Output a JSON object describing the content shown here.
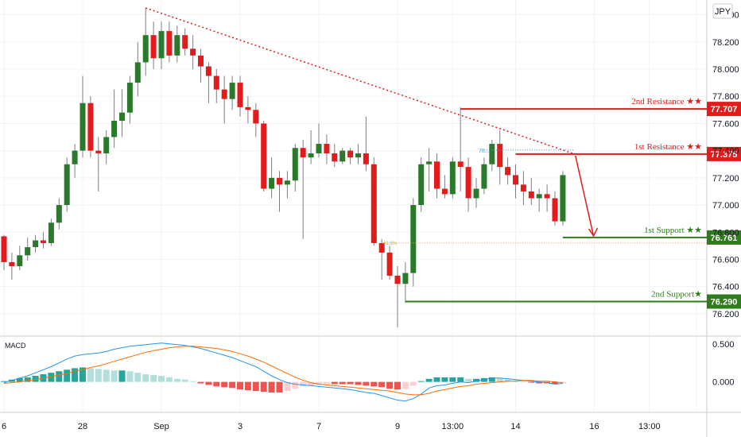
{
  "chart_data": {
    "type": "candlestick",
    "currency": "JPY",
    "ylim": [
      76.1,
      78.45
    ],
    "y_ticks": [
      "78.400",
      "78.200",
      "78.000",
      "77.800",
      "77.600",
      "77.400",
      "77.200",
      "77.000",
      "76.800",
      "76.600",
      "76.400",
      "76.200"
    ],
    "x_tick_labels": [
      {
        "label": "6",
        "i": 0
      },
      {
        "label": "28",
        "i": 10
      },
      {
        "label": "Sep",
        "i": 20
      },
      {
        "label": "3",
        "i": 30
      },
      {
        "label": "7",
        "i": 40
      },
      {
        "label": "9",
        "i": 50
      },
      {
        "label": "13:00",
        "i": 57
      },
      {
        "label": "14",
        "i": 65
      },
      {
        "label": "16",
        "i": 75
      },
      {
        "label": "13:00",
        "i": 82
      },
      {
        "label": "",
        "i": 88
      }
    ],
    "candles": [
      [
        76.77,
        76.78,
        76.52,
        76.58
      ],
      [
        76.58,
        76.65,
        76.45,
        76.55
      ],
      [
        76.55,
        76.7,
        76.52,
        76.63
      ],
      [
        76.63,
        76.76,
        76.59,
        76.69
      ],
      [
        76.69,
        76.78,
        76.65,
        76.74
      ],
      [
        76.74,
        76.8,
        76.68,
        76.72
      ],
      [
        76.72,
        76.9,
        76.7,
        76.87
      ],
      [
        76.87,
        77.05,
        76.82,
        77.0
      ],
      [
        77.0,
        77.35,
        76.95,
        77.3
      ],
      [
        77.3,
        77.45,
        77.2,
        77.4
      ],
      [
        77.4,
        77.95,
        77.35,
        77.75
      ],
      [
        77.75,
        77.8,
        77.35,
        77.4
      ],
      [
        77.4,
        77.5,
        77.1,
        77.38
      ],
      [
        77.38,
        77.55,
        77.3,
        77.5
      ],
      [
        77.5,
        77.85,
        77.42,
        77.62
      ],
      [
        77.62,
        77.85,
        77.5,
        77.68
      ],
      [
        77.68,
        77.95,
        77.6,
        77.9
      ],
      [
        77.9,
        78.2,
        77.8,
        78.05
      ],
      [
        78.05,
        78.45,
        77.95,
        78.25
      ],
      [
        78.25,
        78.35,
        78.0,
        78.08
      ],
      [
        78.08,
        78.35,
        78.0,
        78.28
      ],
      [
        78.28,
        78.35,
        78.05,
        78.1
      ],
      [
        78.1,
        78.32,
        78.05,
        78.25
      ],
      [
        78.25,
        78.3,
        78.1,
        78.15
      ],
      [
        78.15,
        78.25,
        78.0,
        78.1
      ],
      [
        78.1,
        78.15,
        77.9,
        78.02
      ],
      [
        78.02,
        78.05,
        77.75,
        77.95
      ],
      [
        77.95,
        78.0,
        77.75,
        77.85
      ],
      [
        77.85,
        77.95,
        77.6,
        77.78
      ],
      [
        77.78,
        77.95,
        77.7,
        77.9
      ],
      [
        77.9,
        77.95,
        77.65,
        77.72
      ],
      [
        77.72,
        77.8,
        77.6,
        77.7
      ],
      [
        77.7,
        77.75,
        77.5,
        77.6
      ],
      [
        77.6,
        77.62,
        77.1,
        77.12
      ],
      [
        77.12,
        77.35,
        77.05,
        77.2
      ],
      [
        77.2,
        77.25,
        76.95,
        77.15
      ],
      [
        77.15,
        77.25,
        77.05,
        77.18
      ],
      [
        77.18,
        77.45,
        77.1,
        77.42
      ],
      [
        77.42,
        77.48,
        76.75,
        77.35
      ],
      [
        77.35,
        77.55,
        77.3,
        77.38
      ],
      [
        77.38,
        77.6,
        77.35,
        77.45
      ],
      [
        77.45,
        77.52,
        77.3,
        77.38
      ],
      [
        77.38,
        77.45,
        77.28,
        77.32
      ],
      [
        77.32,
        77.42,
        77.3,
        77.4
      ],
      [
        77.4,
        77.42,
        77.3,
        77.35
      ],
      [
        77.35,
        77.45,
        77.3,
        77.38
      ],
      [
        77.38,
        77.65,
        77.25,
        77.3
      ],
      [
        77.3,
        77.35,
        76.7,
        76.72
      ],
      [
        76.72,
        76.75,
        76.45,
        76.65
      ],
      [
        76.65,
        76.7,
        76.45,
        76.48
      ],
      [
        76.48,
        76.55,
        76.1,
        76.42
      ],
      [
        76.42,
        76.58,
        76.28,
        76.5
      ],
      [
        76.5,
        77.05,
        76.4,
        77.0
      ],
      [
        77.0,
        77.35,
        76.95,
        77.3
      ],
      [
        77.3,
        77.42,
        77.1,
        77.32
      ],
      [
        77.32,
        77.38,
        77.05,
        77.12
      ],
      [
        77.12,
        77.22,
        77.05,
        77.08
      ],
      [
        77.08,
        77.35,
        77.05,
        77.32
      ],
      [
        77.32,
        77.72,
        77.1,
        77.28
      ],
      [
        77.28,
        77.35,
        76.95,
        77.05
      ],
      [
        77.05,
        77.2,
        76.98,
        77.12
      ],
      [
        77.12,
        77.35,
        77.08,
        77.3
      ],
      [
        77.3,
        77.48,
        77.25,
        77.45
      ],
      [
        77.45,
        77.55,
        77.15,
        77.28
      ],
      [
        77.28,
        77.35,
        77.15,
        77.22
      ],
      [
        77.22,
        77.3,
        77.05,
        77.15
      ],
      [
        77.15,
        77.25,
        77.0,
        77.1
      ],
      [
        77.1,
        77.2,
        77.0,
        77.05
      ],
      [
        77.05,
        77.12,
        76.95,
        77.08
      ],
      [
        77.08,
        77.15,
        76.95,
        77.05
      ],
      [
        77.05,
        77.1,
        76.85,
        76.88
      ],
      [
        76.88,
        77.25,
        76.85,
        77.22
      ]
    ],
    "levels": [
      {
        "label": "2nd Resistance ★★",
        "value": "77.707",
        "kind": "resistance"
      },
      {
        "label": "1st Resistance ★★",
        "value": "77.375",
        "kind": "resistance"
      },
      {
        "label": "1st Support ★★",
        "value": "76.761",
        "kind": "support"
      },
      {
        "label": "2nd Support★",
        "value": "76.290",
        "kind": "support"
      }
    ],
    "small_labels": {
      "fib_786": "76...",
      "fib_618": "61.8%"
    },
    "macd": {
      "title": "MACD",
      "y_ticks": [
        "0.500",
        "0.000"
      ],
      "ylim": [
        -0.38,
        0.55
      ],
      "macd": [
        -0.01,
        0.02,
        0.05,
        0.08,
        0.12,
        0.16,
        0.2,
        0.25,
        0.3,
        0.34,
        0.36,
        0.37,
        0.38,
        0.4,
        0.43,
        0.45,
        0.47,
        0.48,
        0.49,
        0.5,
        0.51,
        0.5,
        0.49,
        0.48,
        0.46,
        0.44,
        0.41,
        0.38,
        0.35,
        0.32,
        0.28,
        0.24,
        0.2,
        0.14,
        0.08,
        0.03,
        -0.01,
        -0.03,
        -0.04,
        -0.05,
        -0.06,
        -0.07,
        -0.08,
        -0.09,
        -0.1,
        -0.12,
        -0.14,
        -0.15,
        -0.18,
        -0.21,
        -0.24,
        -0.25,
        -0.22,
        -0.16,
        -0.08,
        -0.05,
        -0.04,
        -0.02,
        0.0,
        -0.01,
        0.01,
        0.03,
        0.05,
        0.05,
        0.04,
        0.03,
        0.02,
        0.01,
        0.0,
        -0.01,
        -0.03,
        -0.02
      ],
      "signal": [
        -0.02,
        -0.01,
        0.0,
        0.02,
        0.03,
        0.05,
        0.07,
        0.09,
        0.11,
        0.14,
        0.16,
        0.19,
        0.21,
        0.24,
        0.27,
        0.3,
        0.33,
        0.36,
        0.39,
        0.41,
        0.43,
        0.45,
        0.46,
        0.47,
        0.47,
        0.46,
        0.45,
        0.44,
        0.42,
        0.4,
        0.37,
        0.34,
        0.3,
        0.26,
        0.21,
        0.16,
        0.11,
        0.06,
        0.02,
        -0.01,
        -0.03,
        -0.04,
        -0.05,
        -0.06,
        -0.07,
        -0.08,
        -0.09,
        -0.1,
        -0.11,
        -0.12,
        -0.14,
        -0.16,
        -0.17,
        -0.17,
        -0.15,
        -0.12,
        -0.1,
        -0.08,
        -0.06,
        -0.05,
        -0.03,
        -0.02,
        -0.01,
        0.0,
        0.01,
        0.01,
        0.02,
        0.02,
        0.01,
        0.01,
        0.0,
        -0.01
      ],
      "hist": [
        0.01,
        0.03,
        0.05,
        0.06,
        0.08,
        0.1,
        0.12,
        0.14,
        0.16,
        0.18,
        0.19,
        0.18,
        0.17,
        0.16,
        0.15,
        0.15,
        0.14,
        0.12,
        0.1,
        0.09,
        0.08,
        0.06,
        0.04,
        0.03,
        0.01,
        -0.02,
        -0.04,
        -0.06,
        -0.07,
        -0.08,
        -0.1,
        -0.11,
        -0.12,
        -0.13,
        -0.14,
        -0.14,
        -0.12,
        -0.09,
        -0.06,
        -0.05,
        -0.04,
        -0.03,
        -0.03,
        -0.03,
        -0.03,
        -0.04,
        -0.05,
        -0.06,
        -0.07,
        -0.09,
        -0.1,
        -0.09,
        -0.05,
        0.01,
        0.04,
        0.06,
        0.06,
        0.06,
        0.06,
        0.04,
        0.04,
        0.05,
        0.06,
        0.05,
        0.03,
        0.02,
        0.01,
        -0.01,
        -0.02,
        -0.02,
        -0.03,
        -0.02
      ]
    },
    "colors": {
      "up": "#2b7a2b",
      "down": "#e31b1b",
      "resistance": "#e31b1b",
      "support": "#2e7d1a",
      "macd": "#2196f3",
      "signal": "#ff6d00",
      "hist_up": "#26a69a",
      "hist_up_light": "#b2dfdb",
      "hist_down": "#ef5350",
      "hist_down_light": "#ffcdd2",
      "trend": "#e31b1b"
    }
  }
}
